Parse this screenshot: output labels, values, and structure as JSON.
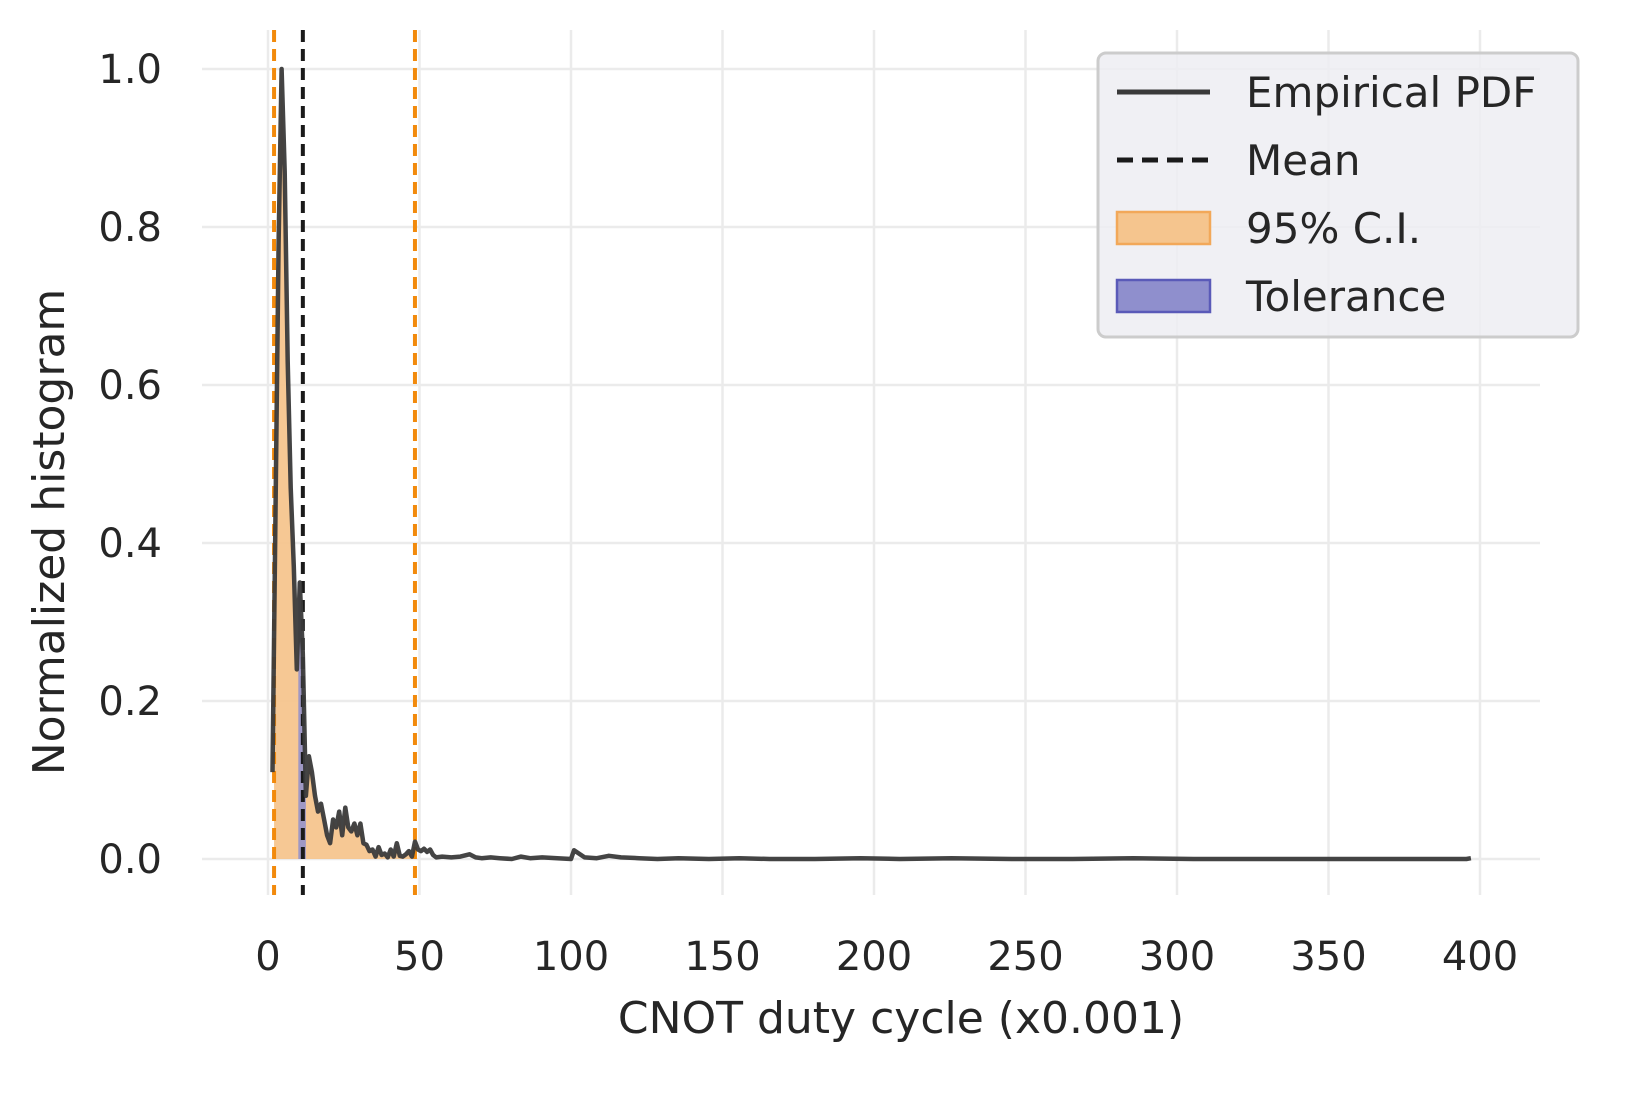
{
  "chart_data": {
    "type": "line",
    "title": "",
    "xlabel": "CNOT duty cycle (x0.001)",
    "ylabel": "Normalized histogram",
    "xlim": [
      -18,
      410
    ],
    "ylim": [
      -0.05,
      1.04
    ],
    "x_ticks": [
      "0",
      "50",
      "100",
      "150",
      "200",
      "250",
      "300",
      "350",
      "400"
    ],
    "y_ticks": [
      "0.0",
      "0.2",
      "0.4",
      "0.6",
      "0.8",
      "1.0"
    ],
    "grid": true,
    "legend_position": "top-right",
    "legend": [
      "Empirical PDF",
      "Mean",
      "95% C.I.",
      "Tolerance"
    ],
    "mean": 11.5,
    "ci": [
      2.0,
      48.5
    ],
    "tolerance": [
      10.0,
      12.5
    ],
    "colors": {
      "pdf_line": "#3a3a3a",
      "mean_line": "#1a1a1a",
      "ci_line": "#f28a0c",
      "ci_fill": "#f5c58e",
      "tolerance_fill": "#8f8fcd",
      "tolerance_edge": "#5a5ab8",
      "grid": "#ebebeb",
      "legend_bg": "#ededf2",
      "legend_border": "#cccccc"
    },
    "series": [
      {
        "name": "Empirical PDF",
        "x": [
          1.5,
          2.5,
          3.5,
          4.5,
          5.5,
          6.5,
          7.5,
          8.5,
          9.5,
          10.5,
          11.5,
          12.5,
          13.5,
          14.5,
          15.5,
          16.5,
          17.5,
          18.5,
          19.5,
          20.5,
          21.5,
          22.5,
          23.5,
          24.5,
          25.5,
          26.5,
          27.5,
          28.5,
          29.5,
          30.5,
          31.5,
          32.5,
          33.5,
          34.5,
          35.5,
          36.5,
          37.5,
          38.5,
          39.5,
          40.5,
          41.5,
          42.5,
          43.5,
          44.5,
          45.5,
          46.5,
          47.5,
          48.5,
          49.5,
          50.5,
          51.5,
          52.5,
          53.5,
          54.5,
          55.5,
          57.5,
          60.5,
          63.5,
          66.5,
          68.5,
          70.5,
          73.5,
          76.5,
          80.5,
          83.5,
          86.5,
          90.5,
          95.5,
          100.0,
          101.0,
          104.5,
          108.5,
          112.5,
          116.5,
          122.5,
          128.5,
          135.5,
          145.5,
          155.5,
          165.5,
          180.5,
          195.5,
          208.5,
          225.5,
          245.5,
          265.5,
          285.5,
          305.5,
          325.5,
          345.5,
          365.5,
          385.5,
          395.5,
          397.0
        ],
        "y": [
          0.11,
          0.45,
          0.78,
          1.0,
          0.87,
          0.63,
          0.47,
          0.37,
          0.24,
          0.35,
          0.26,
          0.08,
          0.13,
          0.11,
          0.08,
          0.06,
          0.07,
          0.05,
          0.03,
          0.02,
          0.05,
          0.04,
          0.06,
          0.03,
          0.065,
          0.04,
          0.035,
          0.045,
          0.03,
          0.045,
          0.02,
          0.018,
          0.01,
          0.012,
          0.003,
          0.015,
          0.005,
          0.007,
          0.002,
          0.012,
          0.003,
          0.02,
          0.004,
          0.003,
          0.006,
          0.01,
          0.003,
          0.022,
          0.012,
          0.01,
          0.013,
          0.009,
          0.012,
          0.005,
          0.002,
          0.003,
          0.002,
          0.003,
          0.006,
          0.002,
          0.001,
          0.002,
          0.001,
          0.0,
          0.003,
          0.001,
          0.002,
          0.001,
          0.0,
          0.011,
          0.002,
          0.001,
          0.004,
          0.002,
          0.001,
          0.0,
          0.001,
          0.0,
          0.001,
          0.0,
          0.0,
          0.001,
          0.0,
          0.001,
          0.0,
          0.0,
          0.001,
          0.0,
          0.0,
          0.0,
          0.0,
          0.0,
          0.0,
          0.001
        ]
      }
    ]
  }
}
